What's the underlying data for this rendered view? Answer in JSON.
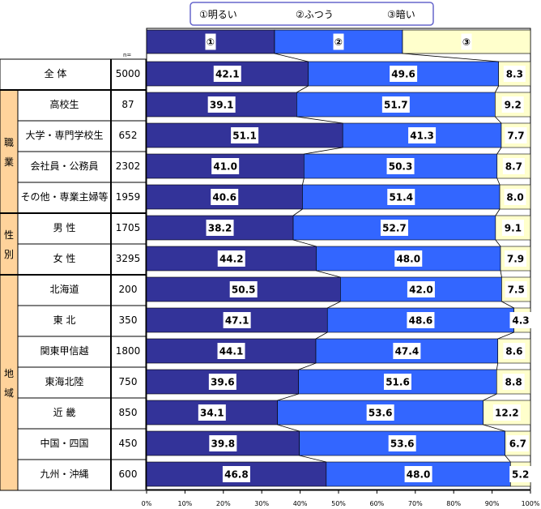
{
  "legend": [
    "①明るい",
    "②ふつう",
    "③暗い"
  ],
  "header_markers": [
    "①",
    "②",
    "③"
  ],
  "n_label": "n=",
  "colors": {
    "bright": "#333399",
    "normal": "#3366FF",
    "dark": "#FFFFCC",
    "group": "#FFD39B"
  },
  "groups": [
    {
      "label": "職業",
      "rows": [
        1,
        4
      ]
    },
    {
      "label": "性別",
      "rows": [
        5,
        6
      ]
    },
    {
      "label": "地域",
      "rows": [
        7,
        13
      ]
    }
  ],
  "chart_data": {
    "type": "bar",
    "stacked": true,
    "orientation": "horizontal",
    "categories": [
      "全 体",
      "高校生",
      "大学・専門学校生",
      "会社員・公務員",
      "その他・専業主婦等",
      "男 性",
      "女 性",
      "北海道",
      "東 北",
      "関東甲信越",
      "東海北陸",
      "近 畿",
      "中国・四国",
      "九州・沖縄"
    ],
    "n": [
      "5000",
      "87",
      "652",
      "2302",
      "1959",
      "1705",
      "3295",
      "200",
      "350",
      "1800",
      "750",
      "850",
      "450",
      "600"
    ],
    "series": [
      {
        "name": "①明るい",
        "values": [
          42.1,
          39.1,
          51.1,
          41.0,
          40.6,
          38.2,
          44.2,
          50.5,
          47.1,
          44.1,
          39.6,
          34.1,
          39.8,
          46.8
        ]
      },
      {
        "name": "②ふつう",
        "values": [
          49.6,
          51.7,
          41.3,
          50.3,
          51.4,
          52.7,
          48.0,
          42.0,
          48.6,
          47.4,
          51.6,
          53.6,
          53.6,
          48.0
        ]
      },
      {
        "name": "③暗い",
        "values": [
          8.3,
          9.2,
          7.7,
          8.7,
          8.0,
          9.1,
          7.9,
          7.5,
          4.3,
          8.6,
          8.8,
          12.2,
          6.7,
          5.2
        ]
      }
    ],
    "xticks": [
      "0%",
      "10%",
      "20%",
      "30%",
      "40%",
      "50%",
      "60%",
      "70%",
      "80%",
      "90%",
      "100%"
    ],
    "xlim": [
      0,
      100
    ],
    "legend_position": "top"
  }
}
